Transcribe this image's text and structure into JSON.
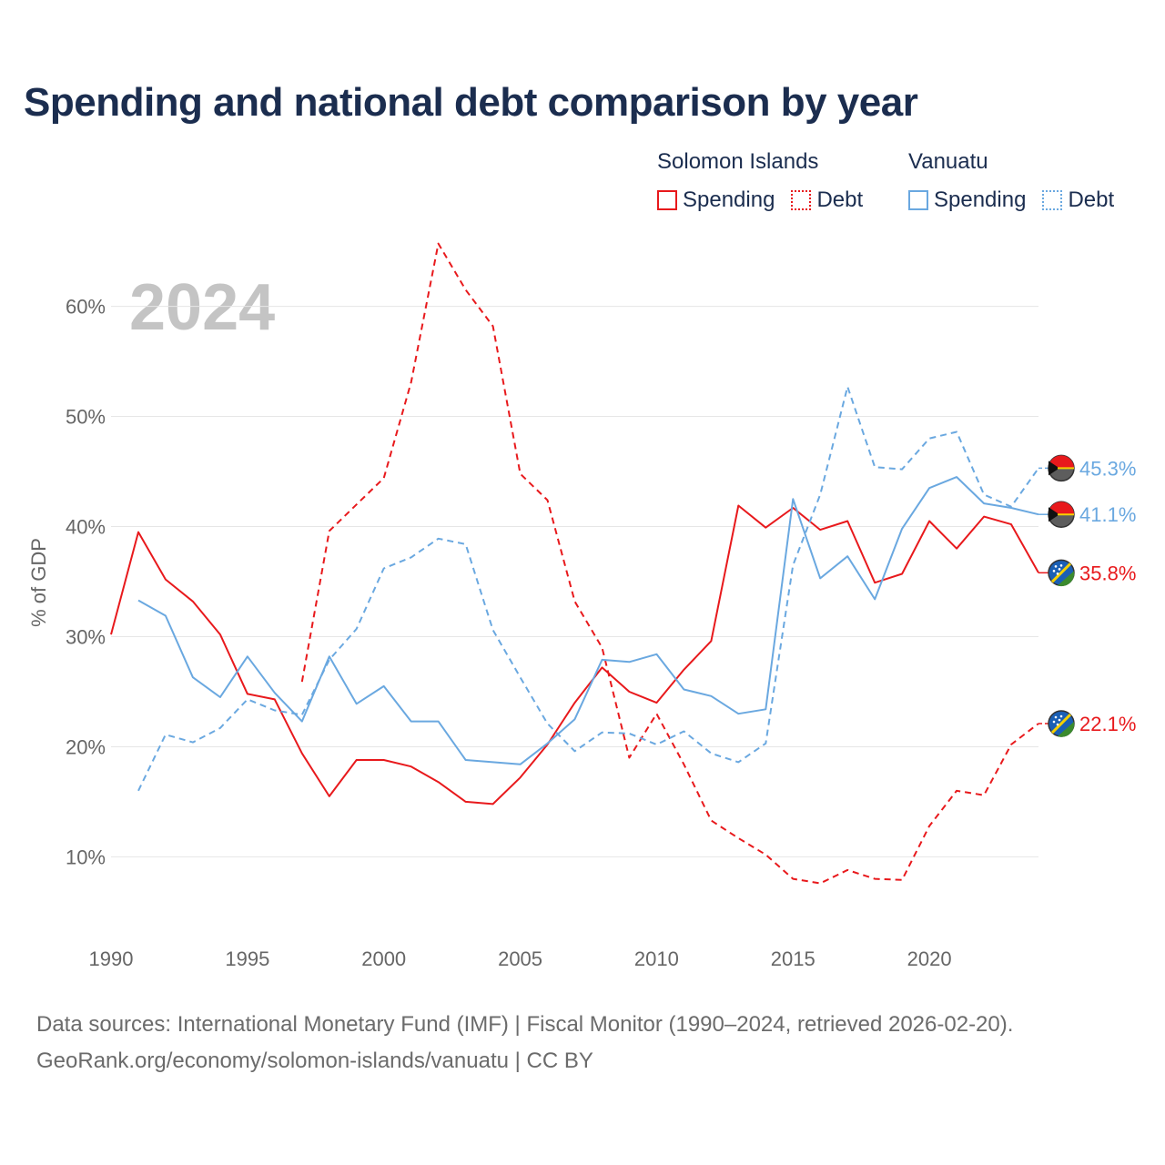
{
  "title": "Spending and national debt comparison by year",
  "legend": {
    "groups": [
      {
        "name": "Solomon Islands",
        "color": "#e8191c",
        "items": [
          "Spending",
          "Debt"
        ]
      },
      {
        "name": "Vanuatu",
        "color": "#6aa8e0",
        "items": [
          "Spending",
          "Debt"
        ]
      }
    ]
  },
  "year_label": "2024",
  "sources": {
    "line1": "Data sources: International Monetary Fund (IMF) | Fiscal Monitor (1990–2024, retrieved 2026-02-20).",
    "line2": "GeoRank.org/economy/solomon-islands/vanuatu | CC BY"
  },
  "chart_data": {
    "type": "line",
    "title": "Spending and national debt comparison by year",
    "xlabel": "",
    "ylabel": "% of GDP",
    "xlim": [
      1990,
      2024
    ],
    "ylim": [
      4,
      66
    ],
    "x_ticks": [
      1990,
      1995,
      2000,
      2005,
      2010,
      2015,
      2020
    ],
    "y_ticks": [
      10,
      20,
      30,
      40,
      50,
      60
    ],
    "y_tick_labels": [
      "10%",
      "20%",
      "30%",
      "40%",
      "50%",
      "60%"
    ],
    "grid": true,
    "series": [
      {
        "name": "Solomon Islands Spending",
        "country": "Solomon Islands",
        "style": "solid",
        "color": "#e8191c",
        "x": [
          1990,
          1991,
          1992,
          1993,
          1994,
          1995,
          1996,
          1997,
          1998,
          1999,
          2000,
          2001,
          2002,
          2003,
          2004,
          2005,
          2006,
          2007,
          2008,
          2009,
          2010,
          2011,
          2012,
          2013,
          2014,
          2015,
          2016,
          2017,
          2018,
          2019,
          2020,
          2021,
          2022,
          2023,
          2024
        ],
        "values": [
          30.2,
          39.5,
          35.2,
          33.2,
          30.2,
          24.8,
          24.3,
          19.4,
          15.5,
          18.8,
          18.8,
          18.2,
          16.8,
          15.0,
          14.8,
          17.2,
          20.2,
          24.0,
          27.2,
          25.0,
          24.0,
          27.0,
          29.6,
          41.9,
          39.9,
          41.7,
          39.7,
          40.5,
          34.9,
          35.7,
          40.5,
          38.0,
          40.9,
          40.2,
          35.8
        ],
        "end_label": "35.8%"
      },
      {
        "name": "Solomon Islands Debt",
        "country": "Solomon Islands",
        "style": "dashed",
        "color": "#e8191c",
        "x": [
          1997,
          1998,
          1999,
          2000,
          2001,
          2002,
          2003,
          2004,
          2005,
          2006,
          2007,
          2008,
          2009,
          2010,
          2011,
          2012,
          2013,
          2014,
          2015,
          2016,
          2017,
          2018,
          2019,
          2020,
          2021,
          2022,
          2023,
          2024
        ],
        "values": [
          25.9,
          39.6,
          42.0,
          44.4,
          53.1,
          65.7,
          61.5,
          58.2,
          44.8,
          42.4,
          33.2,
          29.0,
          19.0,
          23.0,
          18.4,
          13.3,
          11.7,
          10.2,
          8.0,
          7.6,
          8.8,
          8.0,
          7.9,
          12.8,
          16.0,
          15.6,
          20.2,
          22.1
        ],
        "end_label": "22.1%"
      },
      {
        "name": "Vanuatu Spending",
        "country": "Vanuatu",
        "style": "solid",
        "color": "#6aa8e0",
        "x": [
          1991,
          1992,
          1993,
          1994,
          1995,
          1996,
          1997,
          1998,
          1999,
          2000,
          2001,
          2002,
          2003,
          2004,
          2005,
          2006,
          2007,
          2008,
          2009,
          2010,
          2011,
          2012,
          2013,
          2014,
          2015,
          2016,
          2017,
          2018,
          2019,
          2020,
          2021,
          2022,
          2023,
          2024
        ],
        "values": [
          33.3,
          31.9,
          26.3,
          24.5,
          28.2,
          24.9,
          22.3,
          28.2,
          23.9,
          25.5,
          22.3,
          22.3,
          18.8,
          18.6,
          18.4,
          20.3,
          22.5,
          27.9,
          27.7,
          28.4,
          25.2,
          24.6,
          23.0,
          23.4,
          42.5,
          35.3,
          37.3,
          33.4,
          39.8,
          43.5,
          44.5,
          42.1,
          41.7,
          41.1
        ],
        "end_label": "41.1%"
      },
      {
        "name": "Vanuatu Debt",
        "country": "Vanuatu",
        "style": "dashed",
        "color": "#6aa8e0",
        "x": [
          1991,
          1992,
          1993,
          1994,
          1995,
          1996,
          1997,
          1998,
          1999,
          2000,
          2001,
          2002,
          2003,
          2004,
          2005,
          2006,
          2007,
          2008,
          2009,
          2010,
          2011,
          2012,
          2013,
          2014,
          2015,
          2016,
          2017,
          2018,
          2019,
          2020,
          2021,
          2022,
          2023,
          2024
        ],
        "values": [
          16.0,
          21.1,
          20.4,
          21.7,
          24.3,
          23.3,
          22.9,
          27.9,
          30.7,
          36.2,
          37.2,
          38.9,
          38.4,
          30.6,
          26.3,
          22.1,
          19.6,
          21.3,
          21.2,
          20.2,
          21.4,
          19.4,
          18.6,
          20.3,
          36.5,
          42.9,
          52.7,
          45.4,
          45.2,
          48.0,
          48.6,
          42.9,
          41.8,
          45.3
        ],
        "end_label": "45.3%"
      }
    ]
  }
}
